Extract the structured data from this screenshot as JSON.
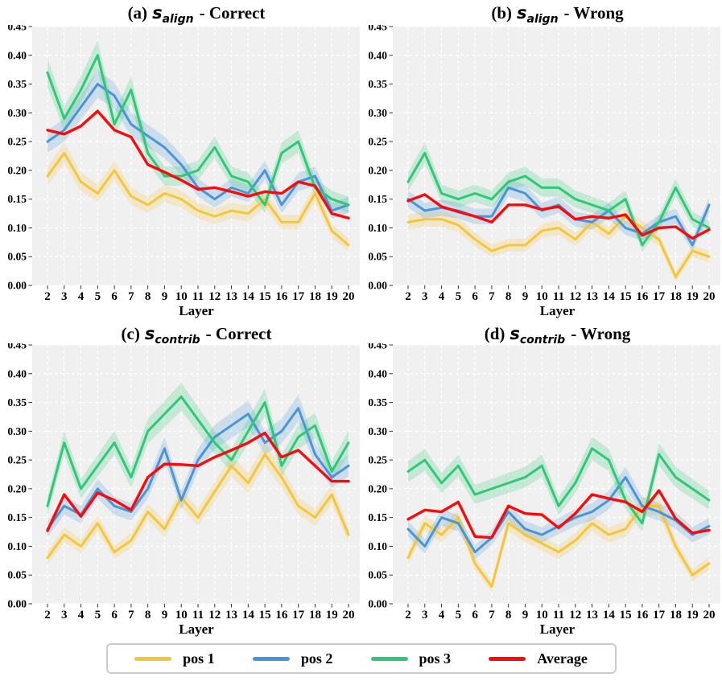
{
  "colors": {
    "pos1": "#F5C63C",
    "pos2": "#4A94D8",
    "pos3": "#2FC877",
    "average": "#FA0A0A",
    "plot_bg": "#F0F0F0",
    "grid": "#FFFFFF",
    "tick": "#000000",
    "legend_border": "#CCCCCC"
  },
  "axes": {
    "y_ticks": [
      "0.45",
      "0.40",
      "0.35",
      "0.30",
      "0.25",
      "0.20",
      "0.15",
      "0.10",
      "0.05",
      "0.00"
    ],
    "ylim": [
      0.0,
      0.45
    ]
  },
  "legend": {
    "items": [
      {
        "label": "pos 1",
        "color_key": "pos1"
      },
      {
        "label": "pos 2",
        "color_key": "pos2"
      },
      {
        "label": "pos 3",
        "color_key": "pos3"
      },
      {
        "label": "Average",
        "color_key": "average"
      }
    ]
  },
  "chart_data": [
    {
      "type": "line",
      "title": {
        "prefix": "(a)",
        "symbol": "s",
        "subscript": "align",
        "suffix": "- Correct"
      },
      "xlabel": "Layer",
      "ylim": [
        0.0,
        0.45
      ],
      "grid": true,
      "x": [
        2,
        3,
        4,
        5,
        6,
        7,
        8,
        9,
        10,
        11,
        12,
        13,
        14,
        15,
        16,
        17,
        18,
        19,
        20
      ],
      "series": [
        {
          "name": "pos 1",
          "color_key": "pos1",
          "band": true,
          "values": [
            0.19,
            0.23,
            0.18,
            0.16,
            0.2,
            0.155,
            0.14,
            0.16,
            0.15,
            0.13,
            0.12,
            0.13,
            0.125,
            0.15,
            0.11,
            0.11,
            0.16,
            0.095,
            0.07
          ]
        },
        {
          "name": "pos 2",
          "color_key": "pos2",
          "band": true,
          "values": [
            0.25,
            0.27,
            0.31,
            0.35,
            0.33,
            0.28,
            0.26,
            0.24,
            0.21,
            0.17,
            0.15,
            0.17,
            0.16,
            0.2,
            0.14,
            0.18,
            0.19,
            0.13,
            0.14
          ]
        },
        {
          "name": "pos 3",
          "color_key": "pos3",
          "band": true,
          "values": [
            0.37,
            0.29,
            0.34,
            0.4,
            0.28,
            0.34,
            0.23,
            0.19,
            0.19,
            0.2,
            0.24,
            0.19,
            0.18,
            0.14,
            0.23,
            0.25,
            0.17,
            0.15,
            0.14
          ]
        },
        {
          "name": "Average",
          "color_key": "average",
          "band": false,
          "values": [
            0.27,
            0.263,
            0.277,
            0.303,
            0.27,
            0.258,
            0.21,
            0.197,
            0.183,
            0.167,
            0.17,
            0.163,
            0.155,
            0.163,
            0.16,
            0.18,
            0.173,
            0.125,
            0.117
          ]
        }
      ]
    },
    {
      "type": "line",
      "title": {
        "prefix": "(b)",
        "symbol": "s",
        "subscript": "align",
        "suffix": "- Wrong"
      },
      "xlabel": "Layer",
      "ylim": [
        0.0,
        0.45
      ],
      "grid": true,
      "x": [
        2,
        3,
        4,
        5,
        6,
        7,
        8,
        9,
        10,
        11,
        12,
        13,
        14,
        15,
        16,
        17,
        18,
        19,
        20
      ],
      "series": [
        {
          "name": "pos 1",
          "color_key": "pos1",
          "band": true,
          "values": [
            0.11,
            0.115,
            0.115,
            0.105,
            0.08,
            0.06,
            0.07,
            0.07,
            0.095,
            0.1,
            0.08,
            0.11,
            0.09,
            0.12,
            0.1,
            0.08,
            0.015,
            0.06,
            0.05
          ]
        },
        {
          "name": "pos 2",
          "color_key": "pos2",
          "band": true,
          "values": [
            0.15,
            0.13,
            0.135,
            0.13,
            0.12,
            0.12,
            0.17,
            0.16,
            0.13,
            0.14,
            0.115,
            0.11,
            0.13,
            0.1,
            0.09,
            0.11,
            0.12,
            0.07,
            0.14
          ]
        },
        {
          "name": "pos 3",
          "color_key": "pos3",
          "band": true,
          "values": [
            0.18,
            0.23,
            0.16,
            0.15,
            0.16,
            0.15,
            0.18,
            0.19,
            0.17,
            0.17,
            0.15,
            0.14,
            0.13,
            0.15,
            0.07,
            0.11,
            0.17,
            0.115,
            0.1
          ]
        },
        {
          "name": "Average",
          "color_key": "average",
          "band": false,
          "values": [
            0.147,
            0.158,
            0.137,
            0.128,
            0.12,
            0.11,
            0.14,
            0.14,
            0.132,
            0.137,
            0.115,
            0.12,
            0.117,
            0.123,
            0.087,
            0.1,
            0.102,
            0.082,
            0.097
          ]
        }
      ]
    },
    {
      "type": "line",
      "title": {
        "prefix": "(c)",
        "symbol": "s",
        "subscript": "contrib",
        "suffix": "- Correct"
      },
      "xlabel": "Layer",
      "ylim": [
        0.0,
        0.45
      ],
      "grid": true,
      "x": [
        2,
        3,
        4,
        5,
        6,
        7,
        8,
        9,
        10,
        11,
        12,
        13,
        14,
        15,
        16,
        17,
        18,
        19,
        20
      ],
      "series": [
        {
          "name": "pos 1",
          "color_key": "pos1",
          "band": true,
          "values": [
            0.08,
            0.12,
            0.1,
            0.14,
            0.09,
            0.11,
            0.16,
            0.13,
            0.185,
            0.15,
            0.195,
            0.24,
            0.21,
            0.26,
            0.22,
            0.17,
            0.15,
            0.19,
            0.12
          ]
        },
        {
          "name": "pos 2",
          "color_key": "pos2",
          "band": true,
          "values": [
            0.13,
            0.17,
            0.155,
            0.2,
            0.17,
            0.16,
            0.2,
            0.27,
            0.18,
            0.25,
            0.29,
            0.31,
            0.33,
            0.28,
            0.3,
            0.34,
            0.26,
            0.22,
            0.24
          ]
        },
        {
          "name": "pos 3",
          "color_key": "pos3",
          "band": true,
          "values": [
            0.17,
            0.28,
            0.2,
            0.24,
            0.28,
            0.22,
            0.3,
            0.33,
            0.36,
            0.32,
            0.28,
            0.25,
            0.3,
            0.35,
            0.24,
            0.29,
            0.31,
            0.23,
            0.28
          ]
        },
        {
          "name": "Average",
          "color_key": "average",
          "band": false,
          "values": [
            0.127,
            0.19,
            0.152,
            0.193,
            0.18,
            0.163,
            0.22,
            0.243,
            0.242,
            0.24,
            0.255,
            0.267,
            0.28,
            0.297,
            0.255,
            0.267,
            0.24,
            0.213,
            0.213
          ]
        }
      ]
    },
    {
      "type": "line",
      "title": {
        "prefix": "(d)",
        "symbol": "s",
        "subscript": "contrib",
        "suffix": "- Wrong"
      },
      "xlabel": "Layer",
      "ylim": [
        0.0,
        0.45
      ],
      "grid": true,
      "x": [
        2,
        3,
        4,
        5,
        6,
        7,
        8,
        9,
        10,
        11,
        12,
        13,
        14,
        15,
        16,
        17,
        18,
        19,
        20
      ],
      "series": [
        {
          "name": "pos 1",
          "color_key": "pos1",
          "band": true,
          "values": [
            0.08,
            0.14,
            0.12,
            0.15,
            0.07,
            0.03,
            0.14,
            0.12,
            0.105,
            0.09,
            0.11,
            0.14,
            0.12,
            0.13,
            0.17,
            0.17,
            0.1,
            0.05,
            0.07
          ]
        },
        {
          "name": "pos 2",
          "color_key": "pos2",
          "band": true,
          "values": [
            0.13,
            0.1,
            0.15,
            0.14,
            0.09,
            0.115,
            0.16,
            0.13,
            0.12,
            0.135,
            0.15,
            0.16,
            0.18,
            0.22,
            0.17,
            0.16,
            0.145,
            0.12,
            0.135
          ]
        },
        {
          "name": "pos 3",
          "color_key": "pos3",
          "band": true,
          "values": [
            0.23,
            0.25,
            0.21,
            0.24,
            0.19,
            0.2,
            0.21,
            0.22,
            0.24,
            0.17,
            0.21,
            0.27,
            0.25,
            0.18,
            0.14,
            0.26,
            0.22,
            0.2,
            0.18
          ]
        },
        {
          "name": "Average",
          "color_key": "average",
          "band": false,
          "values": [
            0.147,
            0.163,
            0.16,
            0.177,
            0.117,
            0.115,
            0.17,
            0.157,
            0.155,
            0.132,
            0.157,
            0.19,
            0.183,
            0.177,
            0.16,
            0.197,
            0.148,
            0.123,
            0.128
          ]
        }
      ]
    }
  ]
}
